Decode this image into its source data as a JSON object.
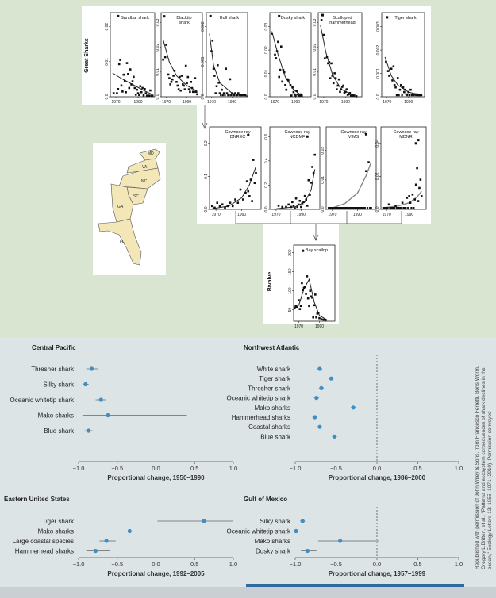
{
  "colors": {
    "dot": "#3d8fc6",
    "accent_bar": "#2f6aa3",
    "map_fill": "#f3e7b8"
  },
  "top": {
    "group_labels": {
      "great_sharks": "Great Sharks",
      "bivalve": "Bivalve"
    },
    "x_ticks": [
      "1970",
      "1990"
    ],
    "map_state_labels": [
      "MD",
      "VA",
      "NC",
      "SC",
      "GA",
      "FL"
    ]
  },
  "credit_text": "Republished with permission of John Wiley & Sons, from Francesco Ferretti, Boris Worm, Gregory L Britten, et al., \"Patterns and ecosystem consequences of shark declines in the ocean,\" Ecology Letters 13: 1055–1071 (2010). Permission conveyed",
  "chart_data": [
    {
      "type": "scatter",
      "title": "Sandbar shark",
      "ylabel": "Great Sharks",
      "y_ticks": [
        "0.0",
        "0.01",
        "0.02"
      ],
      "ylim": [
        0,
        0.024
      ],
      "xlim": [
        1965,
        2005
      ],
      "x": [
        1968,
        1971,
        1972,
        1973,
        1974,
        1975,
        1976,
        1977,
        1978,
        1979,
        1980,
        1981,
        1982,
        1983,
        1984,
        1985,
        1986,
        1987,
        1988,
        1989,
        1990,
        1991,
        1992,
        1993,
        1994,
        1995,
        1996,
        1997,
        1998,
        1999,
        2000,
        2001,
        2002,
        2003
      ],
      "y": [
        0.001,
        0.001,
        0.0022,
        0.0093,
        0.0105,
        0.0032,
        0.0015,
        0.0063,
        0.0045,
        0.0013,
        0.0096,
        0.0065,
        0.0025,
        0.0078,
        0.0035,
        0.0044,
        0.0057,
        0.0025,
        0.0006,
        0.002,
        0.001,
        0.0005,
        0.003,
        0.0013,
        0.0025,
        0.0004,
        0.0022,
        0.001,
        0.0003,
        0.0003,
        0.0003,
        0.0018,
        0.0003,
        0.0003
      ],
      "fit": [
        [
          1967,
          0.0068
        ],
        [
          1975,
          0.0052
        ],
        [
          1985,
          0.0035
        ],
        [
          1995,
          0.0018
        ],
        [
          2003,
          0.0006
        ]
      ],
      "outliers": [
        [
          1972,
          0.023
        ]
      ]
    },
    {
      "type": "scatter",
      "title": "Blacktip shark",
      "y_ticks": [
        "0.0",
        "0.01",
        "0.02",
        "0.03"
      ],
      "ylim": [
        0,
        0.034
      ],
      "xlim": [
        1965,
        2005
      ],
      "x": [
        1967,
        1969,
        1970,
        1972,
        1973,
        1974,
        1975,
        1976,
        1977,
        1978,
        1980,
        1981,
        1982,
        1983,
        1984,
        1985,
        1986,
        1987,
        1988,
        1989,
        1990,
        1991,
        1992,
        1993,
        1994,
        1995,
        1996,
        1997,
        1998,
        1999,
        2000
      ],
      "y": [
        0.015,
        0.016,
        0.021,
        0.009,
        0.0075,
        0.005,
        0.006,
        0.007,
        0.0085,
        0.0105,
        0.006,
        0.0045,
        0.003,
        0.008,
        0.0025,
        0.0085,
        0.005,
        0.0045,
        0.003,
        0.0125,
        0.0055,
        0.008,
        0.003,
        0.002,
        0.006,
        0.0035,
        0.002,
        0.002,
        0.0075,
        0.002,
        0.001
      ],
      "fit": [
        [
          1967,
          0.023
        ],
        [
          1973,
          0.014
        ],
        [
          1980,
          0.0085
        ],
        [
          1990,
          0.0045
        ],
        [
          2000,
          0.0022
        ]
      ],
      "outliers": [
        [
          1968,
          0.0325
        ]
      ]
    },
    {
      "type": "scatter",
      "title": "Bull shark",
      "y_ticks": [
        "0.0",
        "0.001",
        "0.002"
      ],
      "ylim": [
        0,
        0.0024
      ],
      "xlim": [
        1965,
        2005
      ],
      "x": [
        1970,
        1971,
        1972,
        1973,
        1974,
        1975,
        1976,
        1977,
        1978,
        1980,
        1982,
        1984,
        1985,
        1988,
        1990,
        1993,
        1996
      ],
      "y": [
        0.0013,
        0.0016,
        0.0008,
        0.0006,
        0.0001,
        0.0003,
        0.0009,
        0.0004,
        0.0001,
        0.0002,
        0.0001,
        0.0008,
        0.0001,
        0.0005,
        0.0001,
        0.0001,
        0.0001
      ],
      "fit": [
        [
          1968,
          0.0018
        ],
        [
          1972,
          0.0009
        ],
        [
          1978,
          0.0004
        ],
        [
          1990,
          0.0001
        ],
        [
          2005,
          2e-05
        ]
      ],
      "outliers": [
        [
          1969,
          0.0023
        ]
      ],
      "zeros": [
        1979,
        1981,
        1983,
        1986,
        1987,
        1989,
        1991,
        1992,
        1994,
        1995,
        1997,
        1998,
        1999,
        2000,
        2001,
        2002,
        2003
      ]
    },
    {
      "type": "scatter",
      "title": "Dusky shark",
      "y_ticks": [
        "0.0",
        "0.01",
        "0.02",
        "0.03"
      ],
      "ylim": [
        0,
        0.036
      ],
      "xlim": [
        1965,
        2005
      ],
      "x": [
        1967,
        1970,
        1971,
        1972,
        1973,
        1974,
        1975,
        1976,
        1977,
        1978,
        1979,
        1980,
        1981,
        1982,
        1983,
        1985,
        1986,
        1987,
        1988,
        1989,
        1990,
        1991,
        1992,
        1993,
        1994,
        1995,
        1996
      ],
      "y": [
        0.027,
        0.018,
        0.0165,
        0.0195,
        0.0235,
        0.0085,
        0.0115,
        0.0215,
        0.0065,
        0.0115,
        0.0105,
        0.005,
        0.003,
        0.0075,
        0.007,
        0.005,
        0.0005,
        0.004,
        0.002,
        0.001,
        0.0005,
        0.0025,
        0.001,
        0.0005,
        0.0005,
        0.001,
        0.0005
      ],
      "fit": [
        [
          1967,
          0.028
        ],
        [
          1973,
          0.018
        ],
        [
          1980,
          0.0085
        ],
        [
          1988,
          0.003
        ],
        [
          1996,
          0.0005
        ]
      ],
      "outliers": [
        [
          1974,
          0.0345
        ]
      ]
    },
    {
      "type": "scatter",
      "title": "Scalloped hammerhead",
      "y_ticks": [
        "0.0",
        "0.01",
        "0.02",
        "0.03"
      ],
      "ylim": [
        0,
        0.034
      ],
      "xlim": [
        1965,
        2005
      ],
      "x": [
        1968,
        1970,
        1971,
        1973,
        1974,
        1975,
        1976,
        1977,
        1978,
        1979,
        1980,
        1981,
        1982,
        1983,
        1984,
        1985,
        1986,
        1987,
        1988,
        1989,
        1990,
        1991,
        1992,
        1993,
        1994,
        1995,
        1996,
        1997,
        1998,
        2000
      ],
      "y": [
        0.031,
        0.025,
        0.0155,
        0.016,
        0.0135,
        0.014,
        0.0075,
        0.0135,
        0.0085,
        0.0055,
        0.0095,
        0.0075,
        0.003,
        0.0045,
        0.007,
        0.002,
        0.003,
        0.004,
        0.0045,
        0.0015,
        0.002,
        0.003,
        0.0008,
        0.001,
        0.0015,
        0.0005,
        0.0005,
        0.0005,
        0.0005,
        0.0002
      ],
      "fit": [
        [
          1967,
          0.029
        ],
        [
          1972,
          0.018
        ],
        [
          1978,
          0.009
        ],
        [
          1986,
          0.003
        ],
        [
          1998,
          0.0005
        ]
      ],
      "outliers": [
        [
          1969,
          0.033
        ]
      ]
    },
    {
      "type": "scatter",
      "title": "Tiger shark",
      "y_ticks": [
        "0.0",
        "0.001",
        "0.002",
        "0.003"
      ],
      "ylim": [
        0,
        0.0036
      ],
      "xlim": [
        1965,
        2005
      ],
      "x": [
        1969,
        1971,
        1972,
        1974,
        1975,
        1976,
        1977,
        1978,
        1980,
        1982,
        1983,
        1985,
        1986,
        1987,
        1988,
        1990,
        1992,
        1994,
        1996,
        1998
      ],
      "y": [
        0.0015,
        0.0011,
        0.0009,
        0.0012,
        0.0007,
        0.0013,
        0.0005,
        0.0004,
        0.0008,
        0.0003,
        0.0005,
        0.0004,
        0.0002,
        0.0003,
        0.0001,
        0.0002,
        0.0003,
        0.0001,
        0.0001,
        0.0001
      ],
      "fit": [
        [
          1968,
          0.0017
        ],
        [
          1974,
          0.0009
        ],
        [
          1980,
          0.0005
        ],
        [
          1990,
          0.0002
        ],
        [
          2003,
          5e-05
        ]
      ],
      "outliers": [
        [
          1970,
          0.0034
        ]
      ],
      "zeros": [
        1979,
        1981,
        1984,
        1989,
        1991,
        1993,
        1995,
        1997,
        1999,
        2000,
        2001,
        2002
      ]
    },
    {
      "type": "scatter",
      "title": "Cownose ray DNREC",
      "y_ticks": [
        "0.0",
        "0.1",
        "0.2"
      ],
      "ylim": [
        0,
        0.25
      ],
      "xlim": [
        1965,
        2005
      ],
      "x": [
        1967,
        1969,
        1971,
        1973,
        1975,
        1977,
        1979,
        1981,
        1983,
        1985,
        1987,
        1989,
        1991,
        1993,
        1994,
        1995,
        1996,
        1997,
        1998,
        1999,
        2000,
        2001
      ],
      "y": [
        0.01,
        0.005,
        0.02,
        0.01,
        0.015,
        0.005,
        0.01,
        0.02,
        0.01,
        0.03,
        0.02,
        0.06,
        0.03,
        0.05,
        0.085,
        0.055,
        0.04,
        0.09,
        0.025,
        0.15,
        0.08,
        0.11
      ],
      "fit": [
        [
          1967,
          0.002
        ],
        [
          1980,
          0.01
        ],
        [
          1990,
          0.035
        ],
        [
          1996,
          0.075
        ],
        [
          2001,
          0.13
        ]
      ],
      "outliers": [
        [
          1995,
          0.225
        ]
      ]
    },
    {
      "type": "scatter",
      "title": "Cownose ray NCDMF",
      "y_ticks": [
        "0.0",
        "0.2",
        "0.4",
        "0.6"
      ],
      "ylim": [
        0,
        0.68
      ],
      "xlim": [
        1965,
        2005
      ],
      "x": [
        1972,
        1975,
        1978,
        1980,
        1982,
        1983,
        1984,
        1985,
        1986,
        1987,
        1988,
        1989,
        1990,
        1991,
        1992,
        1993,
        1994,
        1995,
        1996,
        1997,
        1998,
        1999,
        2000,
        2001
      ],
      "y": [
        0.03,
        0.02,
        0.02,
        0.04,
        0.02,
        0.06,
        0.03,
        0.01,
        0.09,
        0.02,
        0.04,
        0.07,
        0.02,
        0.05,
        0.06,
        0.11,
        0.08,
        0.03,
        0.24,
        0.12,
        0.22,
        0.35,
        0.3,
        0.45
      ],
      "fit": [
        [
          1970,
          0.005
        ],
        [
          1985,
          0.02
        ],
        [
          1993,
          0.06
        ],
        [
          1998,
          0.16
        ],
        [
          2001,
          0.33
        ]
      ],
      "outliers": [
        [
          1995,
          0.6
        ]
      ]
    },
    {
      "type": "scatter",
      "title": "Cownose ray VIMS",
      "y_ticks": [
        "0.0",
        "0.01",
        "0.02"
      ],
      "ylim": [
        0,
        0.028
      ],
      "xlim": [
        1965,
        2005
      ],
      "x": [
        1997,
        1999
      ],
      "y": [
        0.013,
        0.016
      ],
      "fit": [
        [
          1970,
          0.0005
        ],
        [
          1980,
          0.002
        ],
        [
          1990,
          0.0055
        ],
        [
          1997,
          0.0115
        ],
        [
          2001,
          0.016
        ]
      ],
      "outliers": [
        [
          1997,
          0.0255
        ]
      ],
      "zeros": [
        1967,
        1968,
        1969,
        1970,
        1971,
        1972,
        1973,
        1974,
        1975,
        1976,
        1977,
        1978,
        1979,
        1980,
        1981,
        1982,
        1983,
        1984,
        1985,
        1986,
        1987,
        1988,
        1989,
        1990,
        1991,
        1992,
        1993,
        1994,
        1995,
        1996,
        1998,
        2000,
        2001
      ]
    },
    {
      "type": "scatter",
      "title": "Cownose ray MDNR",
      "y_ticks": [
        "0.0",
        "0.02",
        "0.04"
      ],
      "ylim": [
        0,
        0.05
      ],
      "xlim": [
        1965,
        2005
      ],
      "x": [
        1972,
        1978,
        1984,
        1988,
        1990,
        1991,
        1993,
        1995,
        1996,
        1997,
        1998,
        1999,
        2000,
        2001
      ],
      "y": [
        0.003,
        0.002,
        0.004,
        0.007,
        0.008,
        0.004,
        0.009,
        0.006,
        0.015,
        0.025,
        0.005,
        0.013,
        0.018,
        0.008
      ],
      "fit": [
        [
          1967,
          0.001
        ],
        [
          1980,
          0.002
        ],
        [
          1990,
          0.004
        ],
        [
          1997,
          0.0075
        ],
        [
          2001,
          0.011
        ]
      ],
      "outliers": [
        [
          1996,
          0.04
        ],
        [
          1998,
          0.042
        ]
      ],
      "zeros": [
        1967,
        1968,
        1969,
        1970,
        1971,
        1973,
        1974,
        1975,
        1976,
        1977,
        1979,
        1980,
        1981,
        1982,
        1983,
        1985,
        1986,
        1987,
        1989,
        1992,
        1994
      ]
    },
    {
      "type": "scatter",
      "title": "Bay scallop",
      "ylabel": "Bivalve",
      "y_ticks": [
        "50",
        "100",
        "150",
        "200"
      ],
      "ylim": [
        20,
        220
      ],
      "xlim": [
        1965,
        2005
      ],
      "x": [
        1966,
        1967,
        1968,
        1970,
        1971,
        1972,
        1973,
        1974,
        1975,
        1976,
        1977,
        1978,
        1979,
        1980,
        1981,
        1982,
        1983,
        1984,
        1985,
        1986,
        1987,
        1988,
        1989,
        1990,
        1992,
        1994,
        1996
      ],
      "y": [
        55,
        60,
        58,
        75,
        52,
        60,
        120,
        102,
        108,
        110,
        92,
        138,
        80,
        60,
        100,
        85,
        82,
        30,
        62,
        90,
        30,
        40,
        42,
        28,
        25,
        24,
        23
      ],
      "fit": [
        [
          1966,
          55
        ],
        [
          1970,
          62
        ],
        [
          1975,
          105
        ],
        [
          1980,
          130
        ],
        [
          1985,
          70
        ],
        [
          1990,
          35
        ],
        [
          1997,
          24
        ]
      ],
      "outliers": [
        [
          1974,
          205
        ]
      ]
    },
    {
      "type": "forest",
      "region": "Central Pacific",
      "xlabel": "Proportional change, 1950–1990",
      "x_ticks": [
        "−1.0",
        "−0.5",
        "0.0",
        "0.5",
        "1.0"
      ],
      "xlim": [
        -1.0,
        1.0
      ],
      "categories": [
        "Thresher shark",
        "Silky shark",
        "Oceanic whitetip shark",
        "Mako sharks",
        "Blue shark"
      ],
      "values": [
        -0.83,
        -0.91,
        -0.71,
        -0.62,
        -0.87
      ],
      "ci_low": [
        -0.9,
        -0.94,
        -0.78,
        -0.95,
        -0.92
      ],
      "ci_high": [
        -0.75,
        -0.87,
        -0.64,
        0.4,
        -0.82
      ]
    },
    {
      "type": "forest",
      "region": "Northwest Atlantic",
      "xlabel": "Proportional change, 1986–2000",
      "x_ticks": [
        "−1.0",
        "−0.5",
        "0.0",
        "0.5",
        "1.0"
      ],
      "xlim": [
        -1.0,
        1.0
      ],
      "categories": [
        "White shark",
        "Tiger shark",
        "Thresher shark",
        "Oceanic whitetip shark",
        "Mako sharks",
        "Hammerhead sharks",
        "Coastal sharks",
        "Blue shark"
      ],
      "values": [
        -0.7,
        -0.56,
        -0.68,
        -0.74,
        -0.29,
        -0.76,
        -0.7,
        -0.52
      ],
      "ci_low": [
        -0.73,
        -0.59,
        -0.71,
        -0.77,
        -0.32,
        -0.79,
        -0.73,
        -0.55
      ],
      "ci_high": [
        -0.67,
        -0.53,
        -0.65,
        -0.71,
        -0.26,
        -0.73,
        -0.67,
        -0.49
      ]
    },
    {
      "type": "forest",
      "region": "Eastern United States",
      "xlabel": "Proportional change, 1992–2005",
      "x_ticks": [
        "−1.0",
        "−0.5",
        "0.0",
        "0.5",
        "1.0"
      ],
      "xlim": [
        -1.0,
        1.0
      ],
      "categories": [
        "Tiger shark",
        "Mako sharks",
        "Large coastal species",
        "Hammerhead sharks"
      ],
      "values": [
        0.62,
        -0.34,
        -0.64,
        -0.78
      ],
      "ci_low": [
        0.02,
        -0.55,
        -0.73,
        -0.9
      ],
      "ci_high": [
        1.0,
        -0.13,
        -0.52,
        -0.6
      ]
    },
    {
      "type": "forest",
      "region": "Gulf of Mexico",
      "xlabel": "Proportional change, 1957–1999",
      "x_ticks": [
        "−1.0",
        "−0.5",
        "0.0",
        "0.5",
        "1.0"
      ],
      "xlim": [
        -1.0,
        1.0
      ],
      "categories": [
        "Silky shark",
        "Oceanic whitetip shark",
        "Mako sharks",
        "Dusky shark"
      ],
      "values": [
        -0.91,
        -0.99,
        -0.45,
        -0.85
      ],
      "ci_low": [
        -0.94,
        -1.0,
        -0.72,
        -0.93
      ],
      "ci_high": [
        -0.88,
        -0.98,
        0.02,
        -0.74
      ]
    }
  ]
}
